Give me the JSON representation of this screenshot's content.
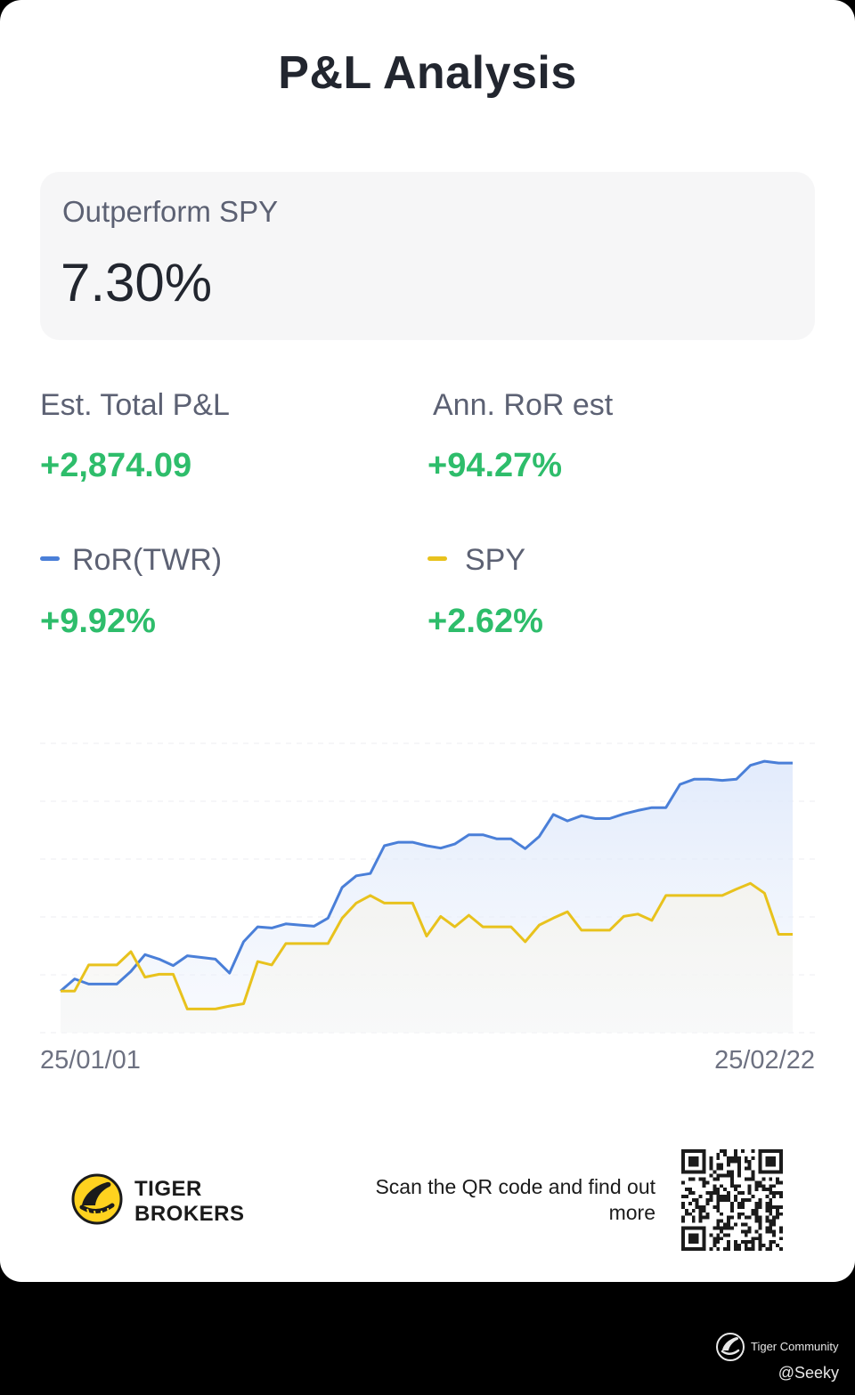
{
  "page": {
    "title": "P&L Analysis"
  },
  "outperform": {
    "label": "Outperform SPY",
    "value": "7.30%"
  },
  "stats": {
    "total_pl_label": "Est. Total P&L",
    "total_pl_value": "+2,874.09",
    "ann_ror_label": "Ann. RoR est",
    "ann_ror_value": "+94.27%",
    "ror_label": "RoR(TWR)",
    "ror_value": "+9.92%",
    "spy_label": "SPY",
    "spy_value": "+2.62%"
  },
  "colors": {
    "positive": "#2ebd6b",
    "ror_series": "#4a7fd8",
    "spy_series": "#e8c21d"
  },
  "chart_data": {
    "type": "line",
    "x_start": "25/01/01",
    "x_end": "25/02/22",
    "ylim": [
      0,
      5
    ],
    "grid": true,
    "series": [
      {
        "name": "RoR(TWR)",
        "color": "#4a7fd8",
        "values": [
          0.72,
          0.93,
          0.84,
          0.84,
          0.84,
          1.06,
          1.35,
          1.27,
          1.16,
          1.33,
          1.3,
          1.27,
          1.03,
          1.57,
          1.83,
          1.81,
          1.88,
          1.86,
          1.84,
          1.98,
          2.51,
          2.71,
          2.75,
          3.23,
          3.29,
          3.29,
          3.23,
          3.19,
          3.26,
          3.42,
          3.42,
          3.35,
          3.35,
          3.18,
          3.39,
          3.77,
          3.66,
          3.75,
          3.7,
          3.7,
          3.78,
          3.84,
          3.89,
          3.89,
          4.29,
          4.38,
          4.38,
          4.36,
          4.38,
          4.62,
          4.69,
          4.66,
          4.66
        ]
      },
      {
        "name": "SPY",
        "color": "#e8c21d",
        "values": [
          0.72,
          0.72,
          1.17,
          1.17,
          1.17,
          1.4,
          0.96,
          1.01,
          1.01,
          0.41,
          0.41,
          0.41,
          0.46,
          0.5,
          1.23,
          1.17,
          1.54,
          1.54,
          1.54,
          1.54,
          1.98,
          2.24,
          2.37,
          2.24,
          2.24,
          2.24,
          1.67,
          2.01,
          1.83,
          2.03,
          1.83,
          1.83,
          1.83,
          1.57,
          1.86,
          1.98,
          2.09,
          1.77,
          1.77,
          1.77,
          2.01,
          2.05,
          1.94,
          2.37,
          2.37,
          2.37,
          2.37,
          2.37,
          2.48,
          2.58,
          2.41,
          1.7,
          1.7
        ]
      }
    ]
  },
  "footer": {
    "brand_line1": "TIGER",
    "brand_line2": "BROKERS",
    "scan_text": "Scan the QR code and find out more",
    "community": "Tiger Community",
    "user": "@Seeky"
  }
}
